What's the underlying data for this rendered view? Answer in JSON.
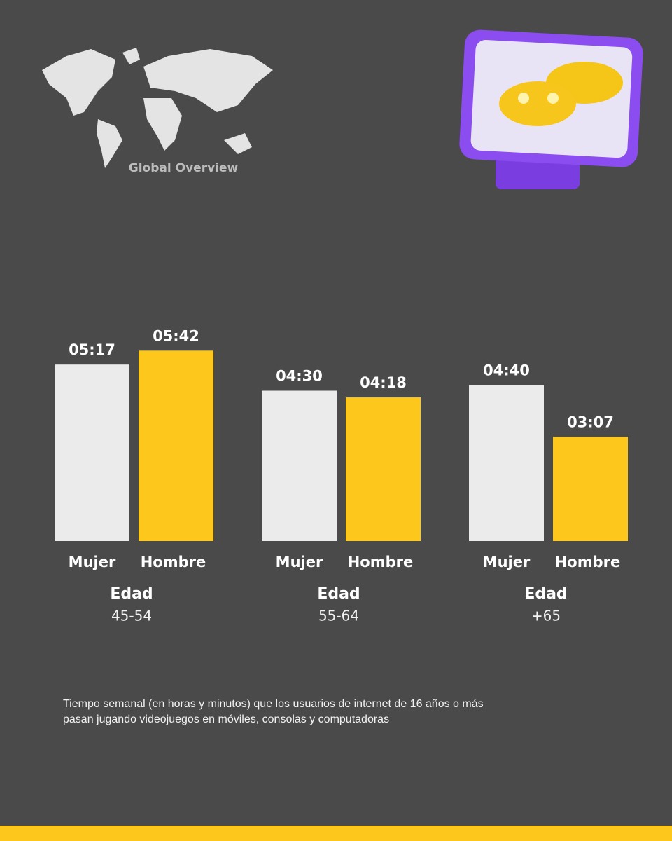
{
  "brand": "Global Overview",
  "chart_data": {
    "type": "bar",
    "group_label": "Edad",
    "categories": [
      "45-54",
      "55-64",
      "+65"
    ],
    "series": [
      {
        "name": "Mujer",
        "color": "#ebebeb",
        "values": [
          317,
          270,
          280
        ],
        "value_labels": [
          "05:17",
          "04:30",
          "04:40"
        ]
      },
      {
        "name": "Hombre",
        "color": "#fdc71c",
        "values": [
          342,
          258,
          187
        ],
        "value_labels": [
          "05:42",
          "04:18",
          "03:07"
        ]
      }
    ],
    "ylim": [
      0,
      360
    ],
    "caption": "Tiempo semanal (en horas y minutos) que los usuarios de internet de 16 años o más pasan jugando videojuegos en móviles, consolas y computadoras"
  }
}
